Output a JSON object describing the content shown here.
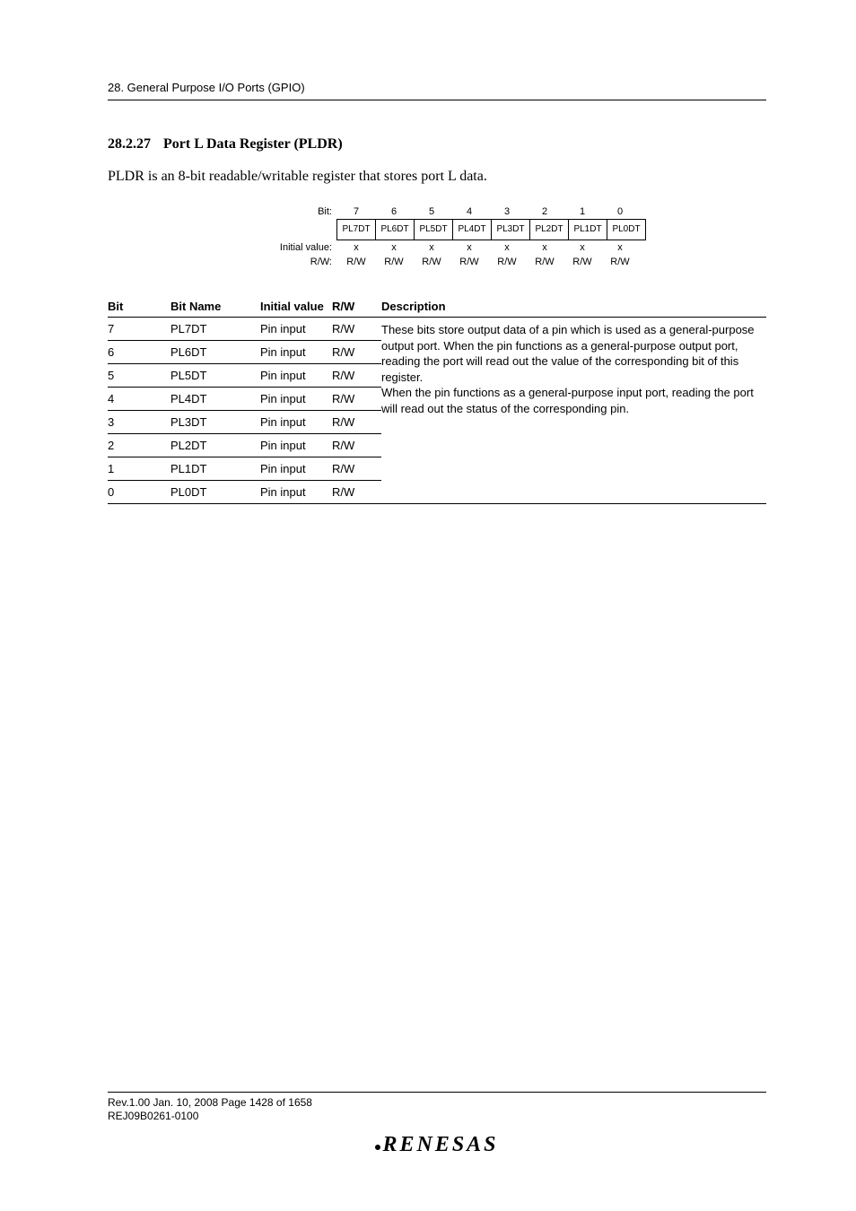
{
  "chapter": "28.   General Purpose I/O Ports (GPIO)",
  "section": {
    "number": "28.2.27",
    "title": "Port L Data Register (PLDR)"
  },
  "intro": "PLDR is an 8-bit readable/writable register that stores port L data.",
  "register": {
    "bit_label": "Bit:",
    "initial_label": "Initial value:",
    "rw_label": "R/W:",
    "bit_numbers": [
      "7",
      "6",
      "5",
      "4",
      "3",
      "2",
      "1",
      "0"
    ],
    "bit_names": [
      "PL7DT",
      "PL6DT",
      "PL5DT",
      "PL4DT",
      "PL3DT",
      "PL2DT",
      "PL1DT",
      "PL0DT"
    ],
    "initial_values": [
      "x",
      "x",
      "x",
      "x",
      "x",
      "x",
      "x",
      "x"
    ],
    "rw_values": [
      "R/W",
      "R/W",
      "R/W",
      "R/W",
      "R/W",
      "R/W",
      "R/W",
      "R/W"
    ]
  },
  "table": {
    "headers": {
      "bit": "Bit",
      "bit_name": "Bit Name",
      "initial": "Initial value",
      "rw": "R/W",
      "desc": "Description"
    },
    "rows": [
      {
        "bit": "7",
        "name": "PL7DT",
        "val": "Pin input",
        "rw": "R/W"
      },
      {
        "bit": "6",
        "name": "PL6DT",
        "val": "Pin input",
        "rw": "R/W"
      },
      {
        "bit": "5",
        "name": "PL5DT",
        "val": "Pin input",
        "rw": "R/W"
      },
      {
        "bit": "4",
        "name": "PL4DT",
        "val": "Pin input",
        "rw": "R/W"
      },
      {
        "bit": "3",
        "name": "PL3DT",
        "val": "Pin input",
        "rw": "R/W"
      },
      {
        "bit": "2",
        "name": "PL2DT",
        "val": "Pin input",
        "rw": "R/W"
      },
      {
        "bit": "1",
        "name": "PL1DT",
        "val": "Pin input",
        "rw": "R/W"
      },
      {
        "bit": "0",
        "name": "PL0DT",
        "val": "Pin input",
        "rw": "R/W"
      }
    ],
    "description": "These bits store output data of a pin which is used as a general-purpose output port. When the pin functions as a general-purpose output port, reading the port will read out the value of the corresponding bit of this register.\nWhen the pin functions as a general-purpose input port, reading the port will read out the status of the corresponding pin."
  },
  "footer": {
    "line1": "Rev.1.00  Jan. 10, 2008  Page 1428 of 1658",
    "line2": "REJ09B0261-0100",
    "brand": "RENESAS"
  }
}
